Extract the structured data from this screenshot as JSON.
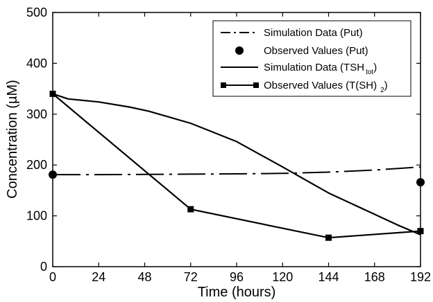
{
  "chart_data": {
    "type": "line",
    "xlabel": "Time (hours)",
    "ylabel": "Concentration (µM)",
    "xlim": [
      0,
      192
    ],
    "ylim": [
      0,
      500
    ],
    "xticks": [
      "0",
      "24",
      "48",
      "72",
      "96",
      "120",
      "144",
      "168",
      "192"
    ],
    "yticks": [
      "0",
      "100",
      "200",
      "300",
      "400",
      "500"
    ],
    "grid": false,
    "legend_position": "top-right",
    "legend": [
      {
        "text": "Simulation Data (Put)",
        "sub": "",
        "tail": ""
      },
      {
        "text": "Observed Values (Put)",
        "sub": "",
        "tail": ""
      },
      {
        "text": "Simulation Data (TSH",
        "sub": "tot",
        "tail": ")"
      },
      {
        "text": "Observed Values (T(SH)",
        "sub": "2",
        "tail": ")"
      }
    ],
    "series": [
      {
        "name": "Simulation Data (Put)",
        "style": "dash-dot",
        "color": "#000000",
        "x": [
          0,
          24,
          48,
          72,
          96,
          120,
          144,
          168,
          192
        ],
        "y": [
          181,
          181,
          181.5,
          182,
          182.5,
          183.5,
          186,
          190,
          196
        ]
      },
      {
        "name": "Observed Values (Put)",
        "style": "circle",
        "color": "#000000",
        "x": [
          0,
          192
        ],
        "y": [
          181,
          166
        ]
      },
      {
        "name": "Simulation Data (TSH tot)",
        "style": "solid",
        "color": "#000000",
        "x": [
          0,
          8,
          24,
          40,
          50,
          72,
          96,
          120,
          144,
          168,
          180,
          192
        ],
        "y": [
          340,
          330,
          324,
          314,
          306,
          282,
          246,
          196,
          145,
          103,
          82,
          63
        ]
      },
      {
        "name": "Observed Values (T(SH) 2)",
        "style": "square-line",
        "color": "#000000",
        "x": [
          0,
          72,
          144,
          192
        ],
        "y": [
          340,
          113,
          57,
          70
        ]
      }
    ]
  }
}
